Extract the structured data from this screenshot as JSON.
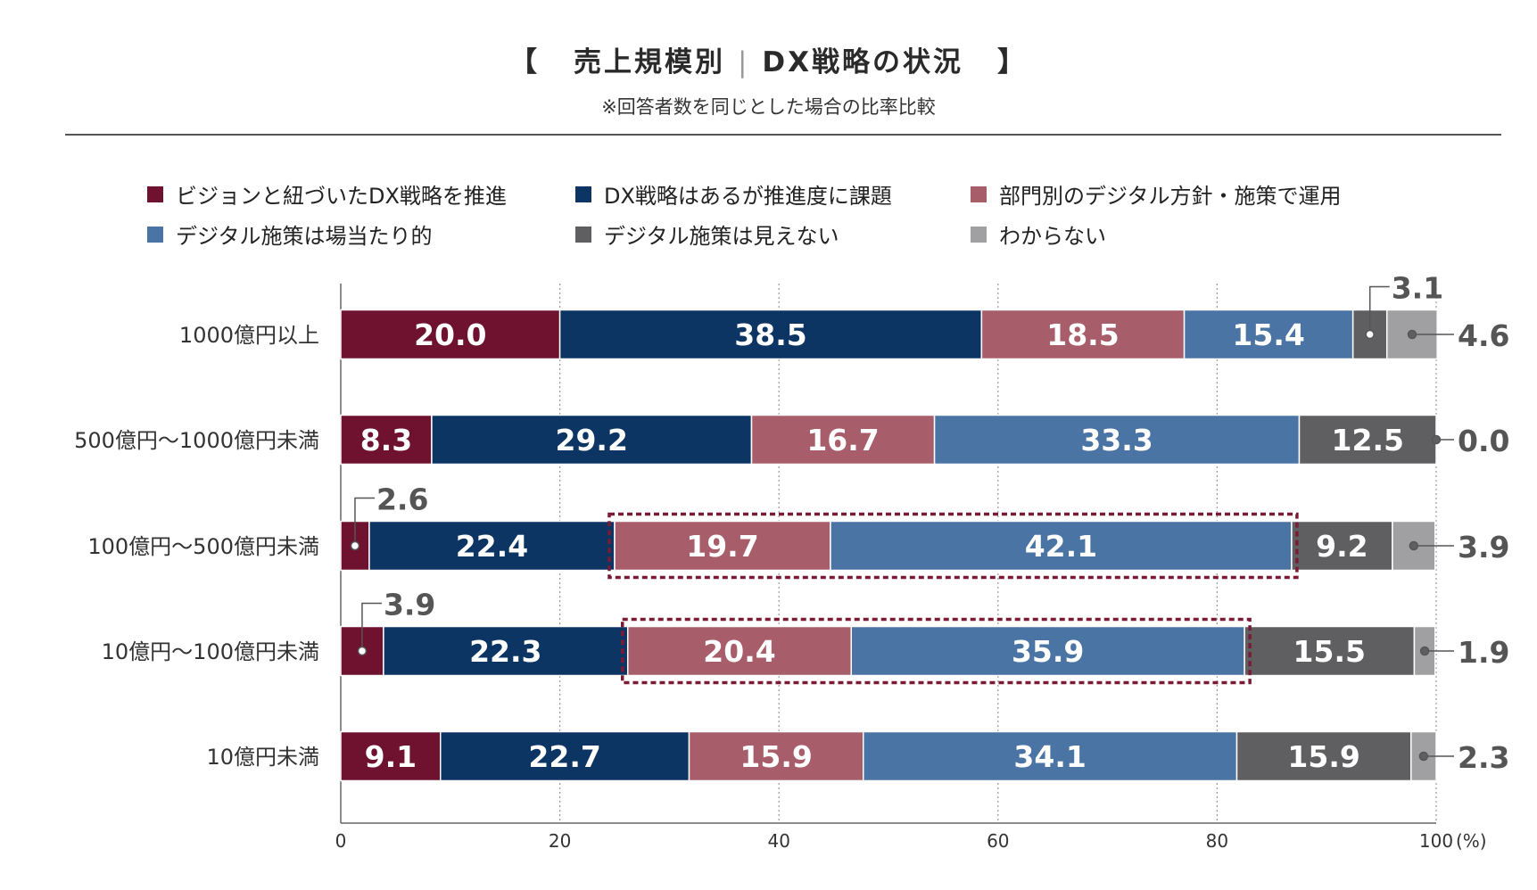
{
  "header": {
    "bracket_open": "【",
    "title_left": "売上規模別",
    "title_sep": "|",
    "title_right": "DX戦略の状況",
    "bracket_close": "】",
    "subtitle": "※回答者数を同じとした場合の比率比較"
  },
  "colors": {
    "accent_dashed_box": "#7a1a35",
    "axis": "#666666",
    "grid": "#9a9a9a",
    "callout_text": "#555555"
  },
  "legend": [
    {
      "label": "ビジョンと紐づいたDX戦略を推進",
      "color": "#6e1230"
    },
    {
      "label": "DX戦略はあるが推進度に課題",
      "color": "#0c3563"
    },
    {
      "label": "部門別のデジタル方針・施策で運用",
      "color": "#a85e6a"
    },
    {
      "label": "デジタル施策は場当たり的",
      "color": "#4a74a3"
    },
    {
      "label": "デジタル施策は見えない",
      "color": "#5f5f62"
    },
    {
      "label": "わからない",
      "color": "#a0a0a2"
    }
  ],
  "chart_data": {
    "type": "bar",
    "orientation": "horizontal",
    "stacked": true,
    "categories": [
      "1000億円以上",
      "500億円～1000億円未満",
      "100億円～500億円未満",
      "10億円～100億円未満",
      "10億円未満"
    ],
    "series": [
      {
        "name": "ビジョンと紐づいたDX戦略を推進",
        "values": [
          20.0,
          8.3,
          2.6,
          3.9,
          9.1
        ],
        "labels": [
          "20.0",
          "8.3",
          "2.6",
          "3.9",
          "9.1"
        ]
      },
      {
        "name": "DX戦略はあるが推進度に課題",
        "values": [
          38.5,
          29.2,
          22.4,
          22.3,
          22.7
        ],
        "labels": [
          "38.5",
          "29.2",
          "22.4",
          "22.3",
          "22.7"
        ]
      },
      {
        "name": "部門別のデジタル方針・施策で運用",
        "values": [
          18.5,
          16.7,
          19.7,
          20.4,
          15.9
        ],
        "labels": [
          "18.5",
          "16.7",
          "19.7",
          "20.4",
          "15.9"
        ]
      },
      {
        "name": "デジタル施策は場当たり的",
        "values": [
          15.4,
          33.3,
          42.1,
          35.9,
          34.1
        ],
        "labels": [
          "15.4",
          "33.3",
          "42.1",
          "35.9",
          "34.1"
        ]
      },
      {
        "name": "デジタル施策は見えない",
        "values": [
          3.1,
          12.5,
          9.2,
          15.5,
          15.9
        ],
        "labels": [
          "3.1",
          "12.5",
          "9.2",
          "15.5",
          "15.9"
        ]
      },
      {
        "name": "わからない",
        "values": [
          4.6,
          0.0,
          3.9,
          1.9,
          2.3
        ],
        "labels": [
          "4.6",
          "0.0",
          "3.9",
          "1.9",
          "2.3"
        ]
      }
    ],
    "x_ticks": [
      "0",
      "20",
      "40",
      "60",
      "80",
      "100"
    ],
    "x_unit": "(%)",
    "xlim": [
      0,
      100
    ],
    "grid": "vertical dotted",
    "highlight_boxes": [
      {
        "category_index": 2,
        "series_from": 2,
        "series_to": 3
      },
      {
        "category_index": 3,
        "series_from": 2,
        "series_to": 3
      }
    ]
  }
}
